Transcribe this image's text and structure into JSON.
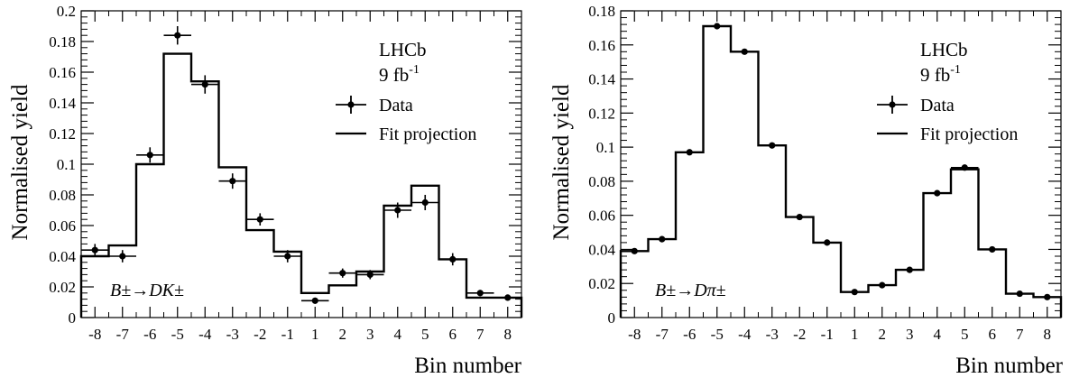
{
  "chart_data": [
    {
      "type": "step-histogram-with-points",
      "xlabel": "Bin number",
      "ylabel": "Normalised yield",
      "ylim": [
        0,
        0.2
      ],
      "yticks": [
        0,
        0.02,
        0.04,
        0.06,
        0.08,
        0.1,
        0.12,
        0.14,
        0.16,
        0.18,
        0.2
      ],
      "ytick_labels": [
        "0",
        "0.02",
        "0.04",
        "0.06",
        "0.08",
        "0.1",
        "0.12",
        "0.14",
        "0.16",
        "0.18",
        "0.2"
      ],
      "categories": [
        "-8",
        "-7",
        "-6",
        "-5",
        "-4",
        "-3",
        "-2",
        "-1",
        "1",
        "2",
        "3",
        "4",
        "5",
        "6",
        "7",
        "8"
      ],
      "experiment": "LHCb",
      "luminosity_value": "9 fb",
      "luminosity_exp": "-1",
      "decay_label": "B±→DK±",
      "legend": [
        "Data",
        "Fit projection"
      ],
      "series": [
        {
          "name": "Data",
          "values": [
            0.044,
            0.04,
            0.106,
            0.184,
            0.152,
            0.089,
            0.064,
            0.04,
            0.011,
            0.029,
            0.028,
            0.07,
            0.075,
            0.038,
            0.016,
            0.013
          ],
          "errors": [
            0.004,
            0.004,
            0.005,
            0.006,
            0.006,
            0.005,
            0.004,
            0.004,
            0.002,
            0.003,
            0.003,
            0.005,
            0.005,
            0.004,
            0.002,
            0.002
          ]
        },
        {
          "name": "Fit projection",
          "values": [
            0.04,
            0.047,
            0.1,
            0.172,
            0.154,
            0.098,
            0.057,
            0.043,
            0.016,
            0.021,
            0.03,
            0.073,
            0.086,
            0.038,
            0.013,
            0.013
          ]
        }
      ]
    },
    {
      "type": "step-histogram-with-points",
      "xlabel": "Bin number",
      "ylabel": "Normalised yield",
      "ylim": [
        0,
        0.18
      ],
      "yticks": [
        0,
        0.02,
        0.04,
        0.06,
        0.08,
        0.1,
        0.12,
        0.14,
        0.16,
        0.18
      ],
      "ytick_labels": [
        "0",
        "0.02",
        "0.04",
        "0.06",
        "0.08",
        "0.1",
        "0.12",
        "0.14",
        "0.16",
        "0.18"
      ],
      "categories": [
        "-8",
        "-7",
        "-6",
        "-5",
        "-4",
        "-3",
        "-2",
        "-1",
        "1",
        "2",
        "3",
        "4",
        "5",
        "6",
        "7",
        "8"
      ],
      "experiment": "LHCb",
      "luminosity_value": "9 fb",
      "luminosity_exp": "-1",
      "decay_label": "B±→Dπ±",
      "legend": [
        "Data",
        "Fit projection"
      ],
      "series": [
        {
          "name": "Data",
          "values": [
            0.039,
            0.046,
            0.097,
            0.171,
            0.156,
            0.101,
            0.059,
            0.044,
            0.015,
            0.019,
            0.028,
            0.073,
            0.088,
            0.04,
            0.014,
            0.012
          ],
          "errors": [
            0.001,
            0.001,
            0.001,
            0.001,
            0.001,
            0.001,
            0.001,
            0.001,
            0.001,
            0.001,
            0.001,
            0.001,
            0.001,
            0.001,
            0.001,
            0.001
          ]
        },
        {
          "name": "Fit projection",
          "values": [
            0.039,
            0.046,
            0.097,
            0.171,
            0.156,
            0.101,
            0.059,
            0.044,
            0.015,
            0.019,
            0.028,
            0.073,
            0.087,
            0.04,
            0.014,
            0.012
          ]
        }
      ]
    }
  ]
}
